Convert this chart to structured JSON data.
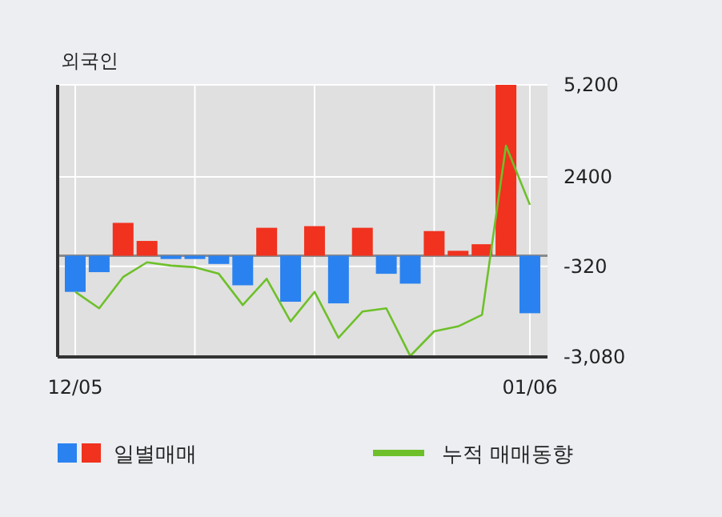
{
  "chart_data": {
    "type": "bar",
    "title": "외국인",
    "categories": [
      "12/05",
      null,
      null,
      null,
      null,
      null,
      null,
      null,
      null,
      null,
      null,
      null,
      null,
      null,
      null,
      null,
      null,
      null,
      null,
      "01/06"
    ],
    "ylim": [
      -3080,
      5200
    ],
    "yticks": [
      {
        "value": 5200,
        "label": "5,200"
      },
      2400,
      -320,
      {
        "value": -3080,
        "label": "-3,080"
      }
    ],
    "grid": true,
    "legend": "bottom",
    "series": [
      {
        "name": "일별매매",
        "colors": [
          "#2a82f0",
          "#2a82f0",
          "#f0321e",
          "#f0321e",
          "#2a82f0",
          "#2a82f0",
          "#2a82f0",
          "#2a82f0",
          "#f0321e",
          "#2a82f0",
          "#f0321e",
          "#2a82f0",
          "#f0321e",
          "#2a82f0",
          "#2a82f0",
          "#f0321e",
          "#f0321e",
          "#f0321e",
          "#f0321e",
          "#2a82f0"
        ],
        "values": [
          -1100,
          -500,
          1000,
          450,
          -100,
          -100,
          -250,
          -900,
          850,
          -1400,
          900,
          -1450,
          850,
          -550,
          -850,
          750,
          150,
          350,
          5200,
          -1750
        ]
      },
      {
        "name": "누적 매매동향",
        "type": "line",
        "color": "#6ec02a",
        "values": [
          -1100,
          -1600,
          -650,
          -200,
          -300,
          -350,
          -550,
          -1500,
          -700,
          -2000,
          -1100,
          -2500,
          -1700,
          -1600,
          -3050,
          -2300,
          -2150,
          -1800,
          3350,
          1550
        ]
      }
    ]
  }
}
